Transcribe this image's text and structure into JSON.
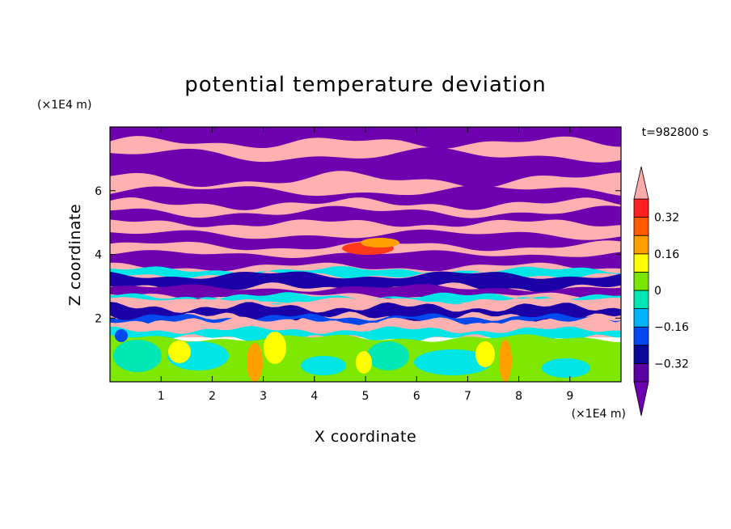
{
  "chart_data": {
    "type": "heatmap",
    "title": "potential temperature deviation",
    "xlabel": "X coordinate",
    "ylabel": "Z coordinate",
    "x_unit": "(×1E4 m)",
    "y_unit": "(×1E4 m)",
    "time_label": "t=982800 s",
    "xlim": [
      0,
      10
    ],
    "ylim": [
      0,
      8
    ],
    "x_ticks": [
      "1",
      "2",
      "3",
      "4",
      "5",
      "6",
      "7",
      "8",
      "9"
    ],
    "y_ticks": [
      "2",
      "4",
      "6"
    ],
    "colorbar": {
      "levels": [
        -0.4,
        -0.32,
        -0.24,
        -0.16,
        -0.08,
        0,
        0.08,
        0.16,
        0.24,
        0.32,
        0.4
      ],
      "tick_labels": [
        "0.32",
        "0.16",
        "0",
        "−0.16",
        "−0.32"
      ],
      "tick_values": [
        0.32,
        0.16,
        0,
        -0.16,
        -0.32
      ],
      "colors": [
        "#5a00a0",
        "#0a0a9a",
        "#0048f0",
        "#00b4ff",
        "#00e6b4",
        "#78e600",
        "#ffff00",
        "#ffa000",
        "#ff5a00",
        "#ff2020"
      ],
      "under_color": "#6e00b0",
      "over_color": "#ffaaaa"
    },
    "colors": {
      "pink": "#ffb0b0",
      "purple": "#6e00b0",
      "navy": "#1a00a6",
      "blue": "#0048f0",
      "cyan": "#00e6e6",
      "teal": "#00e6b4",
      "green": "#7ee800",
      "yellow": "#ffff00",
      "orange": "#ffa000",
      "red": "#ff3a1a"
    }
  }
}
